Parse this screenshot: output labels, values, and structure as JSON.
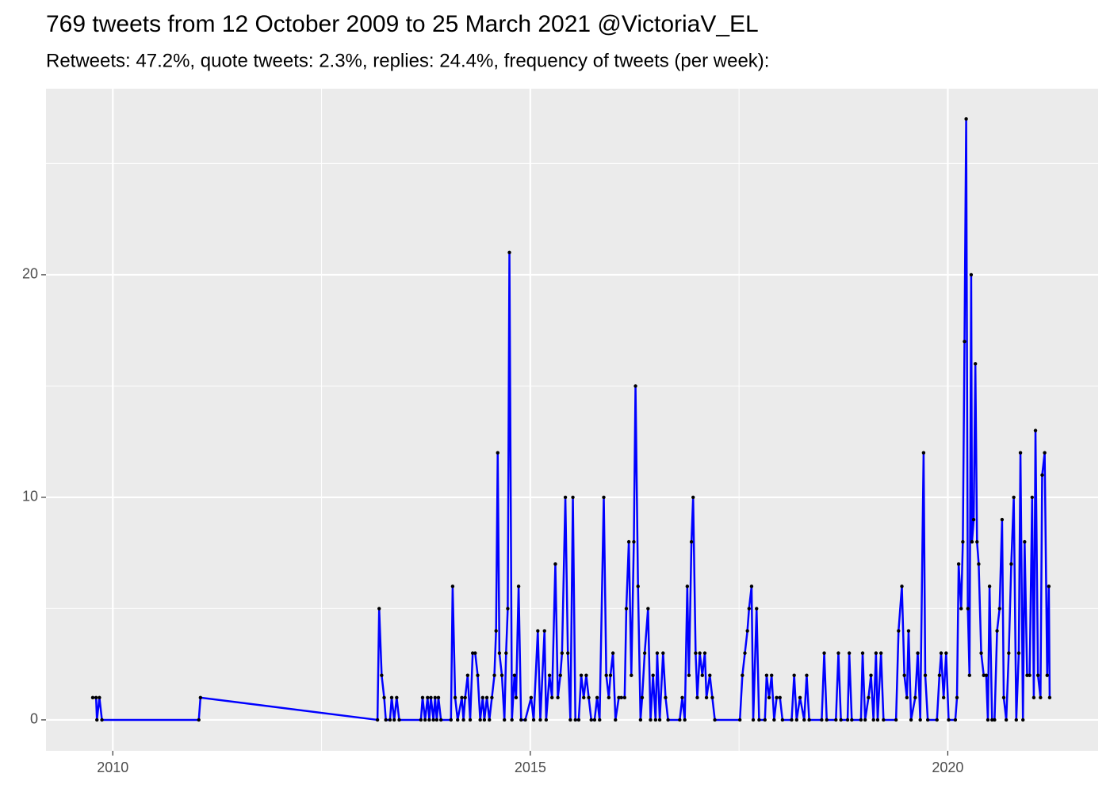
{
  "chart_data": {
    "type": "line",
    "title": "769 tweets from 12 October 2009 to 25 March 2021 @VictoriaV_EL",
    "subtitle": "Retweets: 47.2%, quote tweets: 2.3%, replies: 24.4%, frequency of tweets (per week):",
    "xlim": [
      2009.2,
      2021.8
    ],
    "xticks": [
      2010,
      2015,
      2020
    ],
    "ylim": [
      -1.39,
      28.36
    ],
    "yticks": [
      0,
      10,
      20
    ],
    "grid": true,
    "minor_grid": true,
    "series": [
      {
        "name": "tweets per week",
        "color": "#0000ff",
        "point_color": "#000000",
        "x": [
          2009.76,
          2009.8,
          2009.81,
          2009.84,
          2009.87,
          2011.03,
          2011.05,
          2013.17,
          2013.19,
          2013.22,
          2013.25,
          2013.27,
          2013.32,
          2013.34,
          2013.37,
          2013.4,
          2013.43,
          2013.69,
          2013.71,
          2013.74,
          2013.77,
          2013.79,
          2013.81,
          2013.84,
          2013.86,
          2013.88,
          2013.9,
          2013.93,
          2014.05,
          2014.07,
          2014.1,
          2014.13,
          2014.18,
          2014.2,
          2014.22,
          2014.25,
          2014.28,
          2014.31,
          2014.34,
          2014.37,
          2014.4,
          2014.43,
          2014.45,
          2014.48,
          2014.51,
          2014.54,
          2014.57,
          2014.59,
          2014.61,
          2014.63,
          2014.66,
          2014.69,
          2014.71,
          2014.73,
          2014.75,
          2014.78,
          2014.81,
          2014.83,
          2014.86,
          2014.89,
          2014.94,
          2015.01,
          2015.04,
          2015.09,
          2015.12,
          2015.17,
          2015.19,
          2015.23,
          2015.26,
          2015.3,
          2015.33,
          2015.36,
          2015.38,
          2015.42,
          2015.45,
          2015.48,
          2015.51,
          2015.54,
          2015.58,
          2015.61,
          2015.64,
          2015.67,
          2015.7,
          2015.73,
          2015.77,
          2015.8,
          2015.83,
          2015.88,
          2015.91,
          2015.94,
          2015.96,
          2015.99,
          2016.02,
          2016.06,
          2016.09,
          2016.13,
          2016.15,
          2016.18,
          2016.21,
          2016.24,
          2016.26,
          2016.29,
          2016.32,
          2016.34,
          2016.37,
          2016.41,
          2016.44,
          2016.47,
          2016.5,
          2016.52,
          2016.55,
          2016.59,
          2016.62,
          2016.65,
          2016.79,
          2016.82,
          2016.85,
          2016.88,
          2016.9,
          2016.93,
          2016.95,
          2016.98,
          2017.0,
          2017.03,
          2017.06,
          2017.09,
          2017.11,
          2017.15,
          2017.18,
          2017.21,
          2017.51,
          2017.54,
          2017.57,
          2017.6,
          2017.62,
          2017.65,
          2017.67,
          2017.71,
          2017.74,
          2017.81,
          2017.83,
          2017.86,
          2017.89,
          2017.92,
          2017.95,
          2017.99,
          2018.02,
          2018.13,
          2018.16,
          2018.19,
          2018.23,
          2018.28,
          2018.31,
          2018.34,
          2018.49,
          2018.52,
          2018.55,
          2018.66,
          2018.69,
          2018.72,
          2018.8,
          2018.82,
          2018.85,
          2018.96,
          2018.98,
          2019.01,
          2019.05,
          2019.08,
          2019.11,
          2019.14,
          2019.16,
          2019.2,
          2019.23,
          2019.38,
          2019.41,
          2019.45,
          2019.48,
          2019.51,
          2019.53,
          2019.56,
          2019.61,
          2019.64,
          2019.67,
          2019.71,
          2019.73,
          2019.76,
          2019.87,
          2019.9,
          2019.92,
          2019.95,
          2019.98,
          2020.01,
          2020.09,
          2020.11,
          2020.13,
          2020.16,
          2020.18,
          2020.2,
          2020.22,
          2020.24,
          2020.26,
          2020.28,
          2020.29,
          2020.31,
          2020.33,
          2020.35,
          2020.37,
          2020.4,
          2020.43,
          2020.46,
          2020.48,
          2020.5,
          2020.53,
          2020.56,
          2020.59,
          2020.62,
          2020.65,
          2020.67,
          2020.7,
          2020.73,
          2020.76,
          2020.79,
          2020.82,
          2020.85,
          2020.87,
          2020.9,
          2020.92,
          2020.95,
          2020.98,
          2021.01,
          2021.03,
          2021.05,
          2021.08,
          2021.11,
          2021.13,
          2021.16,
          2021.19,
          2021.21,
          2021.22
        ],
        "values": [
          1,
          1,
          0,
          1,
          0,
          0,
          1,
          0,
          5,
          2,
          1,
          0,
          0,
          1,
          0,
          1,
          0,
          0,
          1,
          0,
          1,
          0,
          1,
          0,
          1,
          0,
          1,
          0,
          0,
          6,
          1,
          0,
          1,
          0,
          1,
          2,
          0,
          3,
          3,
          2,
          0,
          1,
          0,
          1,
          0,
          1,
          2,
          4,
          12,
          3,
          2,
          0,
          3,
          5,
          21,
          0,
          2,
          1,
          6,
          0,
          0,
          1,
          0,
          4,
          0,
          4,
          0,
          2,
          1,
          7,
          1,
          2,
          3,
          10,
          3,
          0,
          10,
          0,
          0,
          2,
          1,
          2,
          1,
          0,
          0,
          1,
          0,
          10,
          2,
          1,
          2,
          3,
          0,
          1,
          1,
          1,
          5,
          8,
          2,
          8,
          15,
          6,
          0,
          1,
          3,
          5,
          0,
          2,
          0,
          3,
          0,
          3,
          1,
          0,
          0,
          1,
          0,
          6,
          2,
          8,
          10,
          3,
          1,
          3,
          2,
          3,
          1,
          2,
          1,
          0,
          0,
          2,
          3,
          4,
          5,
          6,
          0,
          5,
          0,
          0,
          2,
          1,
          2,
          0,
          1,
          1,
          0,
          0,
          2,
          0,
          1,
          0,
          2,
          0,
          0,
          3,
          0,
          0,
          3,
          0,
          0,
          3,
          0,
          0,
          3,
          0,
          1,
          2,
          0,
          3,
          0,
          3,
          0,
          0,
          4,
          6,
          2,
          1,
          4,
          0,
          1,
          3,
          0,
          12,
          2,
          0,
          0,
          2,
          3,
          1,
          3,
          0,
          0,
          1,
          7,
          5,
          8,
          17,
          27,
          5,
          2,
          20,
          8,
          9,
          16,
          8,
          7,
          3,
          2,
          2,
          0,
          6,
          0,
          0,
          4,
          5,
          9,
          1,
          0,
          3,
          7,
          10,
          0,
          3,
          12,
          0,
          8,
          2,
          2,
          10,
          1,
          13,
          2,
          1,
          11,
          12,
          2,
          6,
          1
        ]
      }
    ]
  }
}
